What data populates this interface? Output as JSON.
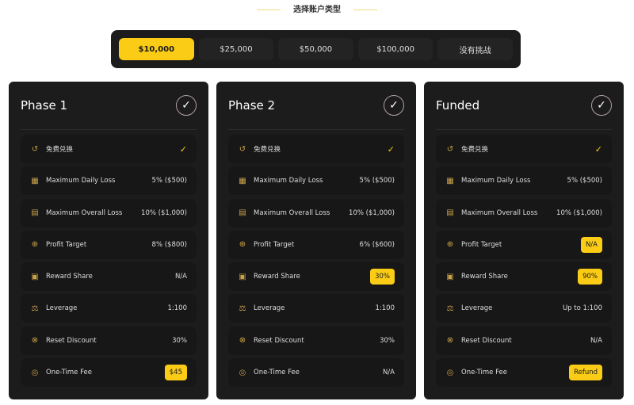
{
  "title": "选择账户类型",
  "tabs": [
    {
      "label": "$10,000",
      "active": true
    },
    {
      "label": "$25,000"
    },
    {
      "label": "$50,000"
    },
    {
      "label": "$100,000"
    },
    {
      "label": "没有挑战"
    }
  ],
  "accent": "#facc15",
  "cards": [
    {
      "title": "Phase 1",
      "rows": [
        {
          "icon": "history-icon",
          "label": "免费兑换",
          "value": "✓",
          "type": "check"
        },
        {
          "icon": "calendar-icon",
          "label": "Maximum Daily Loss",
          "value": "5% ($500)"
        },
        {
          "icon": "chart-icon",
          "label": "Maximum Overall Loss",
          "value": "10% ($1,000)"
        },
        {
          "icon": "target-icon",
          "label": "Profit Target",
          "value": "8% ($800)"
        },
        {
          "icon": "image-plus-icon",
          "label": "Reward Share",
          "value": "N/A"
        },
        {
          "icon": "scale-icon",
          "label": "Leverage",
          "value": "1:100"
        },
        {
          "icon": "discount-icon",
          "label": "Reset Discount",
          "value": "30%"
        },
        {
          "icon": "coins-icon",
          "label": "One-Time Fee",
          "value": "$45",
          "type": "badge"
        }
      ]
    },
    {
      "title": "Phase 2",
      "rows": [
        {
          "icon": "history-icon",
          "label": "免费兑换",
          "value": "✓",
          "type": "check"
        },
        {
          "icon": "calendar-icon",
          "label": "Maximum Daily Loss",
          "value": "5% ($500)"
        },
        {
          "icon": "chart-icon",
          "label": "Maximum Overall Loss",
          "value": "10% ($1,000)"
        },
        {
          "icon": "target-icon",
          "label": "Profit Target",
          "value": "6% ($600)"
        },
        {
          "icon": "image-plus-icon",
          "label": "Reward Share",
          "value": "30%",
          "type": "badge"
        },
        {
          "icon": "scale-icon",
          "label": "Leverage",
          "value": "1:100"
        },
        {
          "icon": "discount-icon",
          "label": "Reset Discount",
          "value": "30%"
        },
        {
          "icon": "coins-icon",
          "label": "One-Time Fee",
          "value": "N/A"
        }
      ]
    },
    {
      "title": "Funded",
      "rows": [
        {
          "icon": "history-icon",
          "label": "免费兑换",
          "value": "✓",
          "type": "check"
        },
        {
          "icon": "calendar-icon",
          "label": "Maximum Daily Loss",
          "value": "5% ($500)"
        },
        {
          "icon": "chart-icon",
          "label": "Maximum Overall Loss",
          "value": "10% ($1,000)"
        },
        {
          "icon": "target-icon",
          "label": "Profit Target",
          "value": "N/A",
          "type": "badge"
        },
        {
          "icon": "image-plus-icon",
          "label": "Reward Share",
          "value": "90%",
          "type": "badge"
        },
        {
          "icon": "scale-icon",
          "label": "Leverage",
          "value": "Up to 1:100"
        },
        {
          "icon": "discount-icon",
          "label": "Reset Discount",
          "value": "N/A"
        },
        {
          "icon": "coins-icon",
          "label": "One-Time Fee",
          "value": "Refund",
          "type": "badge"
        }
      ]
    }
  ]
}
